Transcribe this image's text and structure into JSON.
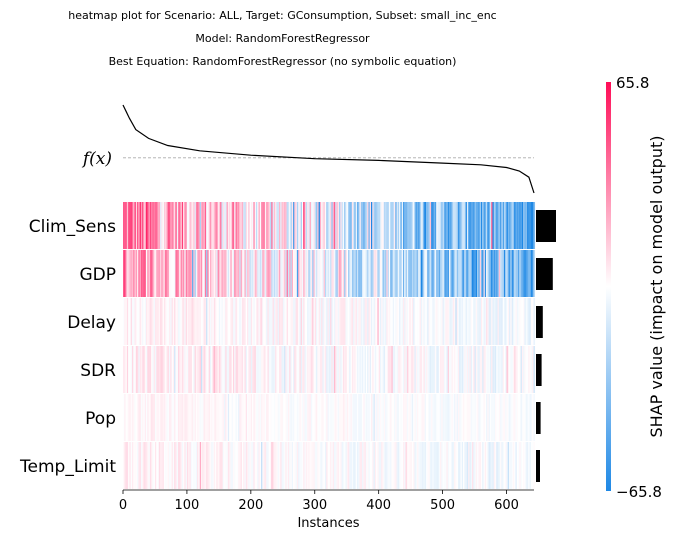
{
  "title_lines": [
    "heatmap plot for Scenario: ALL, Target: GConsumption, Subset: small_inc_enc",
    "Model: RandomForestRegressor",
    "Best Equation: RandomForestRegressor (no symbolic equation)"
  ],
  "chart_data": {
    "type": "heatmap",
    "title": "heatmap plot for Scenario: ALL, Target: GConsumption, Subset: small_inc_enc",
    "xlabel": "Instances",
    "fx_label": "f(x)",
    "features": [
      "Clim_Sens",
      "GDP",
      "Delay",
      "SDR",
      "Pop",
      "Temp_Limit"
    ],
    "x_ticks": [
      0,
      100,
      200,
      300,
      400,
      500,
      600
    ],
    "xlim": [
      0,
      643
    ],
    "n_instances": 643,
    "feature_importance_relative": [
      1.0,
      0.84,
      0.34,
      0.28,
      0.23,
      0.2
    ],
    "color_strength": [
      1.0,
      0.85,
      0.25,
      0.3,
      0.14,
      0.22
    ],
    "colorbar": {
      "label": "SHAP value (impact on model output)",
      "min": -65.8,
      "max": 65.8,
      "min_label": "−65.8",
      "max_label": "65.8",
      "low_color": "#1e88e5",
      "mid_color": "#ffffff",
      "high_color": "#ff0d57"
    },
    "fx_curve": [
      [
        0,
        0.0
      ],
      [
        10,
        0.15
      ],
      [
        20,
        0.28
      ],
      [
        40,
        0.38
      ],
      [
        70,
        0.46
      ],
      [
        120,
        0.52
      ],
      [
        200,
        0.57
      ],
      [
        300,
        0.61
      ],
      [
        400,
        0.63
      ],
      [
        500,
        0.66
      ],
      [
        560,
        0.68
      ],
      [
        600,
        0.71
      ],
      [
        620,
        0.75
      ],
      [
        635,
        0.82
      ],
      [
        643,
        1.0
      ]
    ],
    "fx_ref_level": 0.6,
    "importance_bar_color": "#000000",
    "grid": false
  }
}
